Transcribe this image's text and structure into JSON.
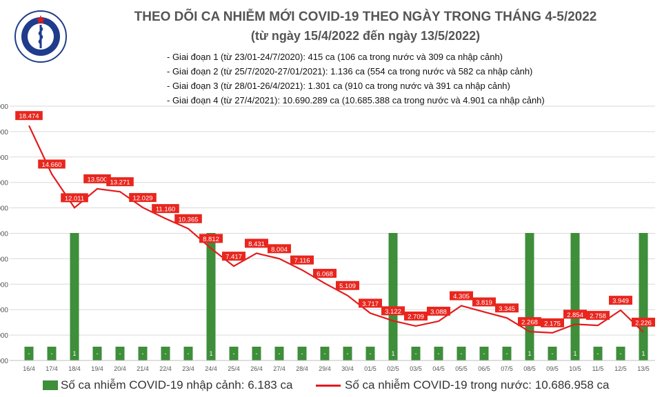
{
  "header": {
    "logo_text_top": "BỘ Y TẾ",
    "logo_text_bottom": "MINISTRY OF HEALTH",
    "title": "THEO DÕI CA NHIỄM MỚI COVID-19 THEO NGÀY TRONG THÁNG 4-5/2022",
    "subtitle": "(từ ngày 15/4/2022 đến ngày 13/5/2022)",
    "notes": [
      "- Giai đoạn 1 (từ 23/01-24/7/2020): 415 ca (106 ca trong nước và 309 ca nhập cảnh)",
      "- Giai đoạn 2 (từ 25/7/2020-27/01/2021): 1.136 ca (554 ca trong nước và 582 ca nhập cảnh)",
      "- Giai đoạn 3 (từ 28/01-26/4/2021): 1.301 ca (910 ca trong nước và 391 ca nhập cảnh)",
      "- Giai đoạn 4 (từ 27/4/2021): 10.690.289 ca (10.685.388 ca trong nước và 4.901 ca nhập cảnh)"
    ]
  },
  "legend": {
    "bar_label": "Số ca nhiễm COVID-19 nhập cảnh: 6.183 ca",
    "line_label": "Số ca nhiễm COVID-19 trong nước: 10.686.958 ca"
  },
  "colors": {
    "bar": "#3e8e3a",
    "line": "#e41a1c",
    "label_bg": "#e8261e"
  },
  "chart_data": {
    "type": "bar+line",
    "categories": [
      "16/4",
      "17/4",
      "18/4",
      "19/4",
      "20/4",
      "21/4",
      "22/4",
      "23/4",
      "24/4",
      "25/4",
      "26/4",
      "27/4",
      "28/4",
      "29/4",
      "30/4",
      "01/5",
      "02/5",
      "03/5",
      "04/5",
      "05/5",
      "06/5",
      "07/5",
      "08/5",
      "09/5",
      "10/5",
      "11/5",
      "12/5",
      "13/5"
    ],
    "y_ticks": [
      "000",
      "000",
      "000",
      "000",
      "000",
      "000",
      "000",
      "000",
      "000",
      "000",
      "000"
    ],
    "series": [
      {
        "name": "Số ca nhiễm COVID-19 nhập cảnh",
        "type": "bar",
        "values": [
          0,
          0,
          1,
          0,
          0,
          0,
          0,
          0,
          1,
          0,
          0,
          0,
          0,
          0,
          0,
          0,
          1,
          0,
          0,
          0,
          0,
          0,
          1,
          0,
          1,
          0,
          0,
          1
        ],
        "labels": [
          "-",
          "-",
          "1",
          "-",
          "-",
          "-",
          "-",
          "-",
          "1",
          "-",
          "-",
          "-",
          "-",
          "-",
          "-",
          "-",
          "1",
          "-",
          "-",
          "-",
          "-",
          "-",
          "1",
          "-",
          "1",
          "-",
          "-",
          "1"
        ]
      },
      {
        "name": "Số ca nhiễm COVID-19 trong nước",
        "type": "line",
        "values": [
          18474,
          14660,
          12011,
          13500,
          13271,
          12029,
          11160,
          10365,
          8812,
          7417,
          8431,
          8004,
          7116,
          6068,
          5109,
          3717,
          3122,
          2709,
          3088,
          4305,
          3819,
          3345,
          2268,
          2175,
          2854,
          2758,
          3949,
          2226
        ],
        "labels": [
          "18.474",
          "14.660",
          "12.011",
          "13.500",
          "13.271",
          "12.029",
          "11.160",
          "10.365",
          "8.812",
          "7.417",
          "8.431",
          "8.004",
          "7.116",
          "6.068",
          "5.109",
          "3.717",
          "3.122",
          "2.709",
          "3.088",
          "4.305",
          "3.819",
          "3.345",
          "2.268",
          "2.175",
          "2.854",
          "2.758",
          "3.949",
          "2.226"
        ]
      }
    ]
  }
}
